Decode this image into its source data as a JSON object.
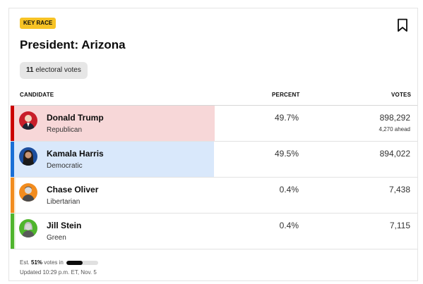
{
  "badge": "KEY RACE",
  "title": "President: Arizona",
  "electoral": {
    "count": "11",
    "label": "electoral votes"
  },
  "columns": {
    "candidate": "CANDIDATE",
    "percent": "PERCENT",
    "votes": "VOTES"
  },
  "candidates": [
    {
      "name": "Donald Trump",
      "party": "Republican",
      "percent": "49.7%",
      "votes": "898,292",
      "note": "4,270 ahead",
      "share": 0.497,
      "color": "#cc0000",
      "fill": "#f7d7d8",
      "avatar_bg": "#c81e2a"
    },
    {
      "name": "Kamala Harris",
      "party": "Democratic",
      "percent": "49.5%",
      "votes": "894,022",
      "note": "",
      "share": 0.495,
      "color": "#1a6fd6",
      "fill": "#d9e8fb",
      "avatar_bg": "#1c4e9e"
    },
    {
      "name": "Chase Oliver",
      "party": "Libertarian",
      "percent": "0.4%",
      "votes": "7,438",
      "note": "",
      "share": 0.004,
      "color": "#f28c1e",
      "fill": "#fde7cf",
      "avatar_bg": "#f28c1e"
    },
    {
      "name": "Jill Stein",
      "party": "Green",
      "percent": "0.4%",
      "votes": "7,115",
      "note": "",
      "share": 0.004,
      "color": "#4fb52d",
      "fill": "#dff2d6",
      "avatar_bg": "#4fb52d"
    }
  ],
  "footer": {
    "est_prefix": "Est.",
    "est_pct": "51%",
    "est_suffix": "votes in",
    "reporting": 0.51,
    "updated": "Updated 10:29 p.m. ET, Nov. 5"
  },
  "colors": {
    "badge": "#f7c325"
  },
  "icons": {
    "bookmark": "bookmark-icon"
  }
}
